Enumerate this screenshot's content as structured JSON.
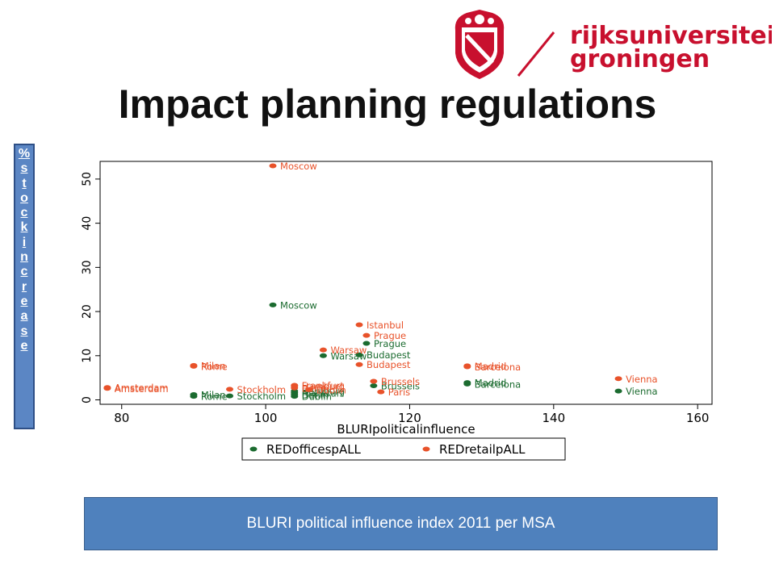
{
  "logo": {
    "line1": "rijksuniversiteit",
    "line2": "groningen",
    "color": "#c8102e"
  },
  "slide_title": "Impact planning regulations",
  "ylabel_chars": [
    "%",
    "s",
    "t",
    "o",
    "c",
    "k",
    "i",
    "n",
    "c",
    "r",
    "e",
    "a",
    "s",
    "e"
  ],
  "caption": "BLURI political influence index 2011 per MSA",
  "colors": {
    "offices": "#1b6b2f",
    "retail": "#e8522a",
    "accent": "#4f81bd"
  },
  "chart_data": {
    "type": "scatter",
    "xlabel": "BLURIpoliticalinfluence",
    "ylabel": "%stockincrease",
    "xlim": [
      77,
      162
    ],
    "ylim": [
      -1,
      54
    ],
    "xticks": [
      80,
      100,
      120,
      140,
      160
    ],
    "yticks": [
      0,
      10,
      20,
      30,
      40,
      50
    ],
    "grid": false,
    "legend_position": "bottom",
    "series": [
      {
        "name": "REDofficespALL",
        "color": "#1b6b2f",
        "points": [
          {
            "label": "Moscow",
            "x": 101,
            "y": 21.5
          },
          {
            "label": "Warsaw",
            "x": 108,
            "y": 10
          },
          {
            "label": "Prague",
            "x": 114,
            "y": 12.8
          },
          {
            "label": "Budapest",
            "x": 113,
            "y": 10.2
          },
          {
            "label": "Brussels",
            "x": 115,
            "y": 3.2
          },
          {
            "label": "Madrid",
            "x": 128,
            "y": 3.9
          },
          {
            "label": "Barcelona",
            "x": 128,
            "y": 3.6
          },
          {
            "label": "Vienna",
            "x": 149,
            "y": 2
          },
          {
            "label": "Rome",
            "x": 90,
            "y": 0.8
          },
          {
            "label": "Milan",
            "x": 90,
            "y": 1.2
          },
          {
            "label": "Stockholm",
            "x": 95,
            "y": 0.9
          },
          {
            "label": "Dublin",
            "x": 104,
            "y": 0.8
          },
          {
            "label": "Berlin",
            "x": 104,
            "y": 1.2
          },
          {
            "label": "Frankfurt",
            "x": 104,
            "y": 1.6
          },
          {
            "label": "Hamburg",
            "x": 104,
            "y": 2
          }
        ]
      },
      {
        "name": "REDretailpALL",
        "color": "#e8522a",
        "points": [
          {
            "label": "Moscow",
            "x": 101,
            "y": 53
          },
          {
            "label": "Istanbul",
            "x": 113,
            "y": 17
          },
          {
            "label": "Prague",
            "x": 114,
            "y": 14.6
          },
          {
            "label": "Warsaw",
            "x": 108,
            "y": 11.3
          },
          {
            "label": "Budapest",
            "x": 113,
            "y": 8
          },
          {
            "label": "Milan",
            "x": 90,
            "y": 7.8
          },
          {
            "label": "Rome",
            "x": 90,
            "y": 7.6
          },
          {
            "label": "Madrid",
            "x": 128,
            "y": 7.7
          },
          {
            "label": "Barcelona",
            "x": 128,
            "y": 7.5
          },
          {
            "label": "Vienna",
            "x": 149,
            "y": 4.8
          },
          {
            "label": "Brussels",
            "x": 115,
            "y": 4.2
          },
          {
            "label": "Amsterdam",
            "x": 78,
            "y": 2.8
          },
          {
            "label": "Amsterdam",
            "x": 78,
            "y": 2.6
          },
          {
            "label": "Stockholm",
            "x": 95,
            "y": 2.4
          },
          {
            "label": "Frankfurt",
            "x": 104,
            "y": 3.3
          },
          {
            "label": "Hamburg",
            "x": 104,
            "y": 3.1
          },
          {
            "label": "Berlin",
            "x": 104,
            "y": 2.7
          },
          {
            "label": "Dublin",
            "x": 106,
            "y": 2.3
          },
          {
            "label": "Paris",
            "x": 116,
            "y": 1.8
          }
        ]
      }
    ]
  }
}
